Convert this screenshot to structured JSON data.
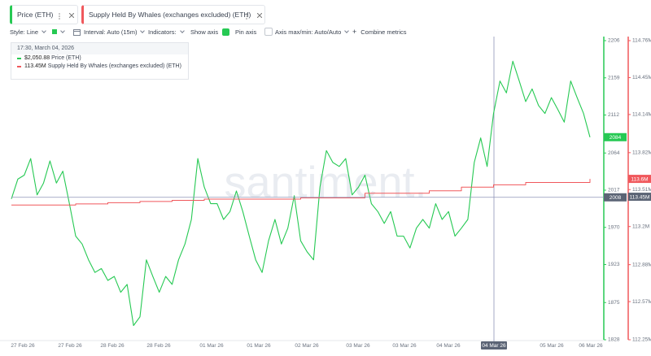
{
  "tabs": [
    {
      "label": "Price (ETH)"
    },
    {
      "label": "Supply Held By Whales (exchanges excluded) (ETH)"
    }
  ],
  "toolbar": {
    "style": "Style: Line",
    "interval": "Interval: Auto (15m)",
    "indicators": "Indicators:",
    "show_axis": "Show axis",
    "pin_axis": "Pin axis",
    "axis_maxmin": "Axis max/min: Auto/Auto",
    "combine": "Combine metrics"
  },
  "watermark": "santiment.",
  "tooltip": {
    "time": "17:30, March 04, 2026",
    "rows": [
      {
        "value": "$2,050.88",
        "label": "Price (ETH)"
      },
      {
        "value": "113.45M",
        "label": "Supply Held By Whales (exchanges excluded) (ETH)"
      }
    ]
  },
  "chart_data": {
    "type": "line",
    "x_labels": [
      "27 Feb 26",
      "27 Feb 26",
      "28 Feb 26",
      "28 Feb 26",
      "01 Mar 26",
      "01 Mar 26",
      "02 Mar 26",
      "03 Mar 26",
      "03 Mar 26",
      "04 Mar 26",
      "04 Mar 26",
      "05 Mar 26",
      "06 Mar 26"
    ],
    "series": [
      {
        "name": "Price (ETH)",
        "color": "#26c953",
        "badge": 2084,
        "values": [
          2006,
          2031,
          2036,
          2057,
          2011,
          2026,
          2054,
          2026,
          2041,
          2001,
          1959,
          1949,
          1929,
          1913,
          1918,
          1903,
          1908,
          1888,
          1898,
          1846,
          1857,
          1929,
          1908,
          1888,
          1908,
          1898,
          1929,
          1949,
          1980,
          2057,
          2021,
          2000,
          2000,
          1980,
          1990,
          2016,
          1990,
          1959,
          1929,
          1913,
          1953,
          1980,
          1949,
          1969,
          2010,
          1953,
          1939,
          1929,
          2021,
          2067,
          2052,
          2047,
          2057,
          2011,
          2021,
          2036,
          2000,
          1990,
          1975,
          1990,
          1959,
          1959,
          1944,
          1969,
          1980,
          1969,
          2000,
          1980,
          1990,
          1959,
          1969,
          1980,
          2052,
          2083,
          2047,
          2114,
          2155,
          2140,
          2180,
          2155,
          2129,
          2145,
          2124,
          2114,
          2134,
          2119,
          2103,
          2155,
          2134,
          2114,
          2084
        ]
      },
      {
        "name": "Supply Held By Whales (exchanges excluded) (ETH)",
        "color": "#f0585c",
        "axis": "y2",
        "badge": {
          "value": 113.6,
          "label": "113.6M"
        },
        "values": [
          113.38,
          113.38,
          113.39,
          113.4,
          113.41,
          113.42,
          113.43,
          113.43,
          113.43,
          113.44,
          113.44,
          113.48,
          113.48,
          113.5,
          113.53,
          113.55,
          113.57,
          113.57,
          113.6
        ]
      }
    ],
    "ylim": [
      1828,
      2206
    ],
    "yticks": [
      1828,
      1875,
      1923,
      1970,
      2017,
      2064,
      2112,
      2159,
      2206
    ],
    "y2lim": [
      112.25,
      114.76
    ],
    "y2ticks": [
      {
        "value": 112.25,
        "label": "112.25M"
      },
      {
        "value": 112.57,
        "label": "112.57M"
      },
      {
        "value": 112.88,
        "label": "112.88M"
      },
      {
        "value": 113.2,
        "label": "113.2M"
      },
      {
        "value": 113.51,
        "label": "113.51M"
      },
      {
        "value": 113.82,
        "label": "113.82M"
      },
      {
        "value": 114.14,
        "label": "114.14M"
      },
      {
        "value": 114.45,
        "label": "114.45M"
      },
      {
        "value": 114.76,
        "label": "114.76M"
      }
    ],
    "crosshair": {
      "y": 2008,
      "y2": {
        "value": 113.45,
        "label": "113.45M"
      }
    }
  }
}
